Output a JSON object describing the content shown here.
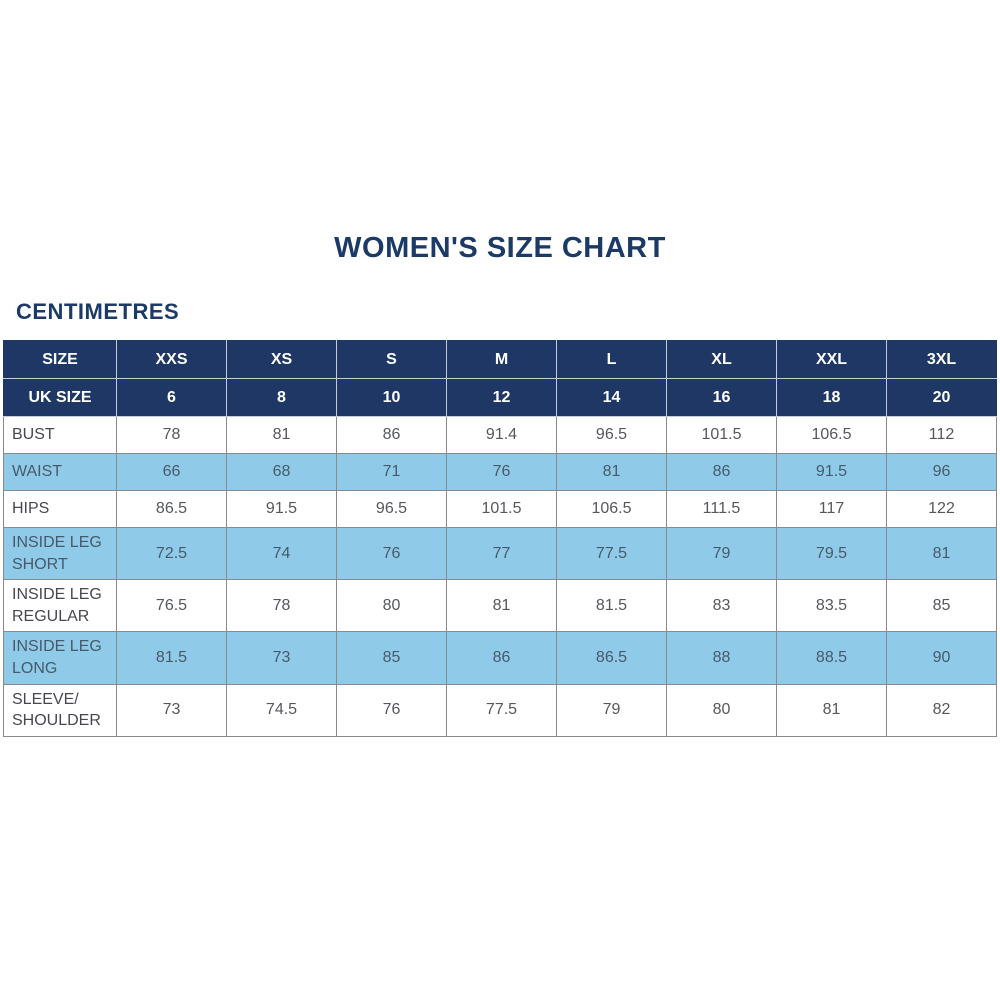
{
  "page": {
    "title": "WOMEN'S SIZE CHART",
    "units_label": "CENTIMETRES"
  },
  "colors": {
    "navy_header": "#1e3765",
    "highlight_blue": "#8fcbe9",
    "title_text": "#1b3a68",
    "header_text": "#ffffff",
    "body_text": "#55575b",
    "grid_border": "#8a8a8a"
  },
  "chart_data": {
    "type": "table",
    "title": "WOMEN'S SIZE CHART",
    "subtitle": "CENTIMETRES",
    "header_rows": [
      {
        "label": "SIZE",
        "values": [
          "XXS",
          "XS",
          "S",
          "M",
          "L",
          "XL",
          "XXL",
          "3XL"
        ]
      },
      {
        "label": "UK SIZE",
        "values": [
          "6",
          "8",
          "10",
          "12",
          "14",
          "16",
          "18",
          "20"
        ]
      }
    ],
    "rows": [
      {
        "label": "BUST",
        "highlight": false,
        "values": [
          "78",
          "81",
          "86",
          "91.4",
          "96.5",
          "101.5",
          "106.5",
          "112"
        ]
      },
      {
        "label": "WAIST",
        "highlight": true,
        "values": [
          "66",
          "68",
          "71",
          "76",
          "81",
          "86",
          "91.5",
          "96"
        ]
      },
      {
        "label": "HIPS",
        "highlight": false,
        "values": [
          "86.5",
          "91.5",
          "96.5",
          "101.5",
          "106.5",
          "111.5",
          "117",
          "122"
        ]
      },
      {
        "label": "INSIDE LEG SHORT",
        "highlight": true,
        "values": [
          "72.5",
          "74",
          "76",
          "77",
          "77.5",
          "79",
          "79.5",
          "81"
        ]
      },
      {
        "label": "INSIDE LEG REGULAR",
        "highlight": false,
        "values": [
          "76.5",
          "78",
          "80",
          "81",
          "81.5",
          "83",
          "83.5",
          "85"
        ]
      },
      {
        "label": "INSIDE LEG LONG",
        "highlight": true,
        "values": [
          "81.5",
          "73",
          "85",
          "86",
          "86.5",
          "88",
          "88.5",
          "90"
        ]
      },
      {
        "label": "SLEEVE/ SHOULDER",
        "highlight": false,
        "values": [
          "73",
          "74.5",
          "76",
          "77.5",
          "79",
          "80",
          "81",
          "82"
        ]
      }
    ]
  }
}
